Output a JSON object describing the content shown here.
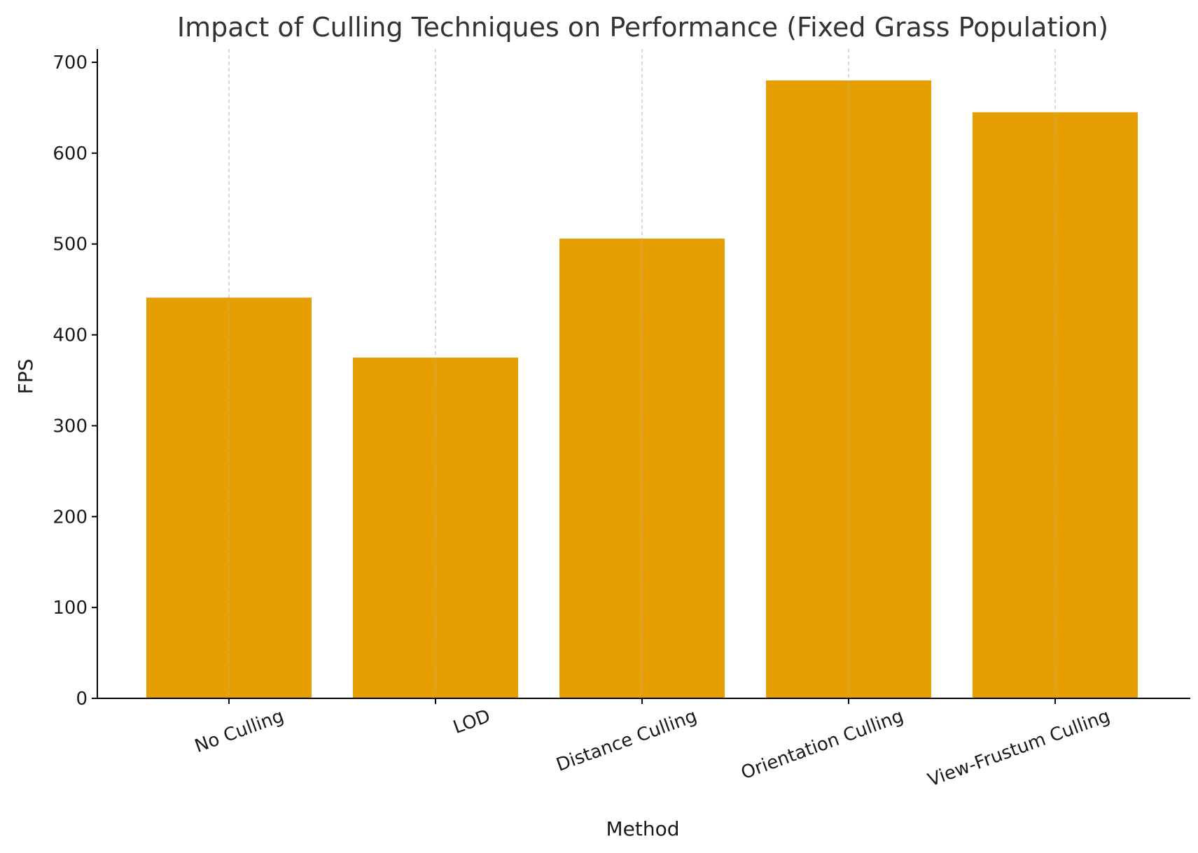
{
  "chart_data": {
    "type": "bar",
    "title": "Impact of Culling Techniques on Performance (Fixed Grass Population)",
    "xlabel": "Method",
    "ylabel": "FPS",
    "categories": [
      "No Culling",
      "LOD",
      "Distance Culling",
      "Orientation Culling",
      "View-Frustum Culling"
    ],
    "values": [
      441,
      375,
      506,
      680,
      645
    ],
    "ylim": [
      0,
      700
    ],
    "yticks": [
      0,
      100,
      200,
      300,
      400,
      500,
      600,
      700
    ],
    "grid": "vertical dashed",
    "bar_color": "#e69f00",
    "xtick_rotation": 20
  }
}
